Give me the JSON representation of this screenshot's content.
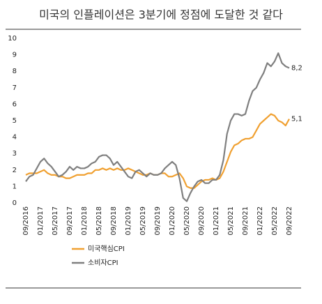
{
  "chart_data": {
    "type": "line",
    "title": "미국의 인플레이션은 3분기에 정점에 도달한 것 같다",
    "categories": [
      "09/2016",
      null,
      null,
      null,
      "01/2017",
      null,
      null,
      null,
      "05/2017",
      null,
      null,
      null,
      "09/2017",
      null,
      null,
      null,
      "01/2018",
      null,
      null,
      null,
      "05/2018",
      null,
      null,
      null,
      "09/2018",
      null,
      null,
      null,
      "01/2019",
      null,
      null,
      null,
      "05/2019",
      null,
      null,
      null,
      "09/2019",
      null,
      null,
      null,
      "01/2020",
      null,
      null,
      null,
      "05/2020",
      null,
      null,
      null,
      "09/2020",
      null,
      null,
      null,
      "01/2021",
      null,
      null,
      null,
      "05/2021",
      null,
      null,
      null,
      "09/2021",
      null,
      null,
      null,
      "01/2022",
      null,
      null,
      null,
      "05/2022",
      null,
      null,
      null,
      "09/2022"
    ],
    "series": [
      {
        "name": "미국핵심CPI",
        "color": "#f0a030",
        "values": [
          1.7,
          1.8,
          1.8,
          1.8,
          1.9,
          2.0,
          1.8,
          1.7,
          1.7,
          1.6,
          1.6,
          1.5,
          1.5,
          1.6,
          1.7,
          1.7,
          1.7,
          1.8,
          1.8,
          2.0,
          2.0,
          2.1,
          2.0,
          2.1,
          2.0,
          2.1,
          2.0,
          2.0,
          2.1,
          2.0,
          1.9,
          1.8,
          1.7,
          1.7,
          1.8,
          1.7,
          1.7,
          1.8,
          1.8,
          1.6,
          1.6,
          1.7,
          1.8,
          1.5,
          1.0,
          0.9,
          0.9,
          1.1,
          1.3,
          1.4,
          1.4,
          1.5,
          1.4,
          1.5,
          1.9,
          2.5,
          3.1,
          3.5,
          3.6,
          3.8,
          3.9,
          3.9,
          4.0,
          4.4,
          4.8,
          5.0,
          5.2,
          5.4,
          5.3,
          5.0,
          4.9,
          4.7,
          5.1
        ],
        "value_labels": [
          null,
          null,
          null,
          null,
          null,
          null,
          null,
          null,
          null,
          null,
          null,
          null,
          null,
          null,
          null,
          null,
          null,
          null,
          null,
          null,
          null,
          null,
          null,
          null,
          null,
          null,
          null,
          null,
          null,
          null,
          null,
          null,
          null,
          null,
          null,
          null,
          null,
          null,
          null,
          null,
          null,
          null,
          null,
          null,
          null,
          null,
          null,
          null,
          null,
          null,
          null,
          null,
          null,
          null,
          null,
          null,
          null,
          null,
          null,
          null,
          null,
          null,
          null,
          null,
          null,
          null,
          null,
          null,
          null,
          null,
          null,
          null,
          "5,1"
        ]
      },
      {
        "name": "소비자CPI",
        "color": "#7f7f7f",
        "values": [
          1.3,
          1.6,
          1.7,
          2.1,
          2.5,
          2.7,
          2.4,
          2.2,
          1.9,
          1.6,
          1.7,
          1.9,
          2.2,
          2.0,
          2.2,
          2.1,
          2.1,
          2.2,
          2.4,
          2.5,
          2.8,
          2.9,
          2.9,
          2.7,
          2.3,
          2.5,
          2.2,
          1.9,
          1.6,
          1.5,
          1.9,
          2.0,
          1.8,
          1.6,
          1.8,
          1.7,
          1.7,
          1.8,
          2.1,
          2.3,
          2.5,
          2.3,
          1.5,
          0.3,
          0.1,
          0.6,
          1.0,
          1.3,
          1.4,
          1.2,
          1.2,
          1.4,
          1.4,
          1.7,
          2.6,
          4.2,
          5.0,
          5.4,
          5.4,
          5.3,
          5.4,
          6.2,
          6.8,
          7.0,
          7.5,
          7.9,
          8.5,
          8.3,
          8.6,
          9.1,
          8.5,
          8.3,
          8.2
        ],
        "value_labels": [
          null,
          null,
          null,
          null,
          null,
          null,
          null,
          null,
          null,
          null,
          null,
          null,
          null,
          null,
          null,
          null,
          null,
          null,
          null,
          null,
          null,
          null,
          null,
          null,
          null,
          null,
          null,
          null,
          null,
          null,
          null,
          null,
          null,
          null,
          null,
          null,
          null,
          null,
          null,
          null,
          null,
          null,
          null,
          null,
          null,
          null,
          null,
          null,
          null,
          null,
          null,
          null,
          null,
          null,
          null,
          null,
          null,
          null,
          null,
          null,
          null,
          null,
          null,
          null,
          null,
          null,
          null,
          null,
          null,
          null,
          null,
          null,
          "8,2"
        ]
      }
    ],
    "ylim": [
      0,
      10
    ],
    "yticks": [
      0,
      1,
      2,
      3,
      4,
      5,
      6,
      7,
      8,
      9,
      10
    ]
  }
}
